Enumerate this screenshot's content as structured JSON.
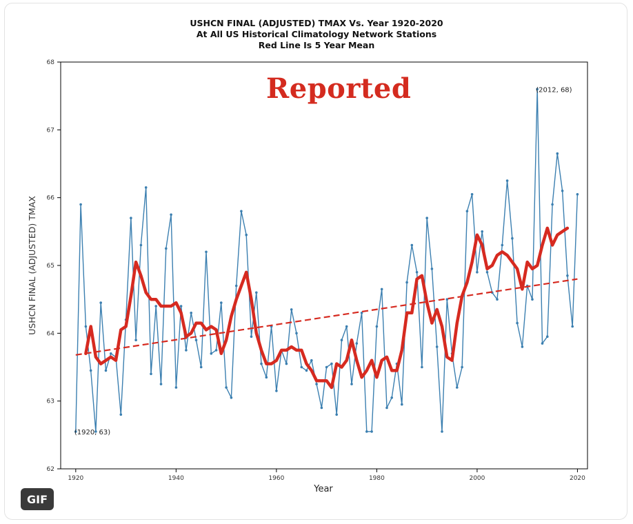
{
  "badge": {
    "label": "GIF"
  },
  "overlay": {
    "stamp_text": "Reported"
  },
  "chart_data": {
    "type": "line",
    "title": "USHCN FINAL (ADJUSTED) TMAX Vs. Year 1920-2020",
    "subtitle_lines": [
      "At All US Historical Climatology Network Stations",
      "Red Line Is 5 Year Mean"
    ],
    "xlabel": "Year",
    "ylabel": "USHCN FINAL (ADJUSTED) TMAX",
    "xlim": [
      1917,
      2022
    ],
    "ylim": [
      62,
      68
    ],
    "x_ticks": [
      1920,
      1940,
      1960,
      1980,
      2000,
      2020
    ],
    "y_ticks": [
      62,
      63,
      64,
      65,
      66,
      67,
      68
    ],
    "grid": false,
    "colors": {
      "annual": "#3b7fb0",
      "mean": "#d62a20",
      "trend": "#d62a20"
    },
    "annotations": [
      {
        "text": "(1920, 63)",
        "x": 1920,
        "y": 62.55
      },
      {
        "text": "(2012, 68)",
        "x": 2012,
        "y": 67.6
      }
    ],
    "series": [
      {
        "style": "annual",
        "x": [
          1920,
          1921,
          1922,
          1923,
          1924,
          1925,
          1926,
          1927,
          1928,
          1929,
          1930,
          1931,
          1932,
          1933,
          1934,
          1935,
          1936,
          1937,
          1938,
          1939,
          1940,
          1941,
          1942,
          1943,
          1944,
          1945,
          1946,
          1947,
          1948,
          1949,
          1950,
          1951,
          1952,
          1953,
          1954,
          1955,
          1956,
          1957,
          1958,
          1959,
          1960,
          1961,
          1962,
          1963,
          1964,
          1965,
          1966,
          1967,
          1968,
          1969,
          1970,
          1971,
          1972,
          1973,
          1974,
          1975,
          1976,
          1977,
          1978,
          1979,
          1980,
          1981,
          1982,
          1983,
          1984,
          1985,
          1986,
          1987,
          1988,
          1989,
          1990,
          1991,
          1992,
          1993,
          1994,
          1995,
          1996,
          1997,
          1998,
          1999,
          2000,
          2001,
          2002,
          2003,
          2004,
          2005,
          2006,
          2007,
          2008,
          2009,
          2010,
          2011,
          2012,
          2013,
          2014,
          2015,
          2016,
          2017,
          2018,
          2019,
          2020
        ],
        "values": [
          62.55,
          65.9,
          64.1,
          63.45,
          62.55,
          64.45,
          63.45,
          63.7,
          63.65,
          62.8,
          64.2,
          65.7,
          63.9,
          65.3,
          66.15,
          63.4,
          64.4,
          63.25,
          65.25,
          65.75,
          63.2,
          64.4,
          63.75,
          64.3,
          63.9,
          63.5,
          65.2,
          63.7,
          63.75,
          64.45,
          63.2,
          63.05,
          64.7,
          65.8,
          65.45,
          63.95,
          64.6,
          63.55,
          63.35,
          64.1,
          63.15,
          63.75,
          63.55,
          64.35,
          64.0,
          63.5,
          63.45,
          63.6,
          63.25,
          62.9,
          63.5,
          63.55,
          62.8,
          63.9,
          64.1,
          63.25,
          63.85,
          64.3,
          62.55,
          62.55,
          64.1,
          64.65,
          62.9,
          63.05,
          63.55,
          62.95,
          64.75,
          65.3,
          64.9,
          63.5,
          65.7,
          64.95,
          63.8,
          62.55,
          64.5,
          63.7,
          63.2,
          63.5,
          65.8,
          66.05,
          64.9,
          65.5,
          64.9,
          64.6,
          64.5,
          65.3,
          66.25,
          65.4,
          64.15,
          63.8,
          64.7,
          64.5,
          67.6,
          63.85,
          63.95,
          65.9,
          66.65,
          66.1,
          64.85,
          64.1,
          66.05
        ]
      },
      {
        "style": "mean",
        "x": [
          1922,
          1923,
          1924,
          1925,
          1926,
          1927,
          1928,
          1929,
          1930,
          1931,
          1932,
          1933,
          1934,
          1935,
          1936,
          1937,
          1938,
          1939,
          1940,
          1941,
          1942,
          1943,
          1944,
          1945,
          1946,
          1947,
          1948,
          1949,
          1950,
          1951,
          1952,
          1953,
          1954,
          1955,
          1956,
          1957,
          1958,
          1959,
          1960,
          1961,
          1962,
          1963,
          1964,
          1965,
          1966,
          1967,
          1968,
          1969,
          1970,
          1971,
          1972,
          1973,
          1974,
          1975,
          1976,
          1977,
          1978,
          1979,
          1980,
          1981,
          1982,
          1983,
          1984,
          1985,
          1986,
          1987,
          1988,
          1989,
          1990,
          1991,
          1992,
          1993,
          1994,
          1995,
          1996,
          1997,
          1998,
          1999,
          2000,
          2001,
          2002,
          2003,
          2004,
          2005,
          2006,
          2007,
          2008,
          2009,
          2010,
          2011,
          2012,
          2013,
          2014,
          2015,
          2016,
          2017,
          2018
        ],
        "values": [
          63.7,
          64.1,
          63.65,
          63.55,
          63.6,
          63.65,
          63.6,
          64.05,
          64.1,
          64.55,
          65.05,
          64.85,
          64.6,
          64.5,
          64.5,
          64.4,
          64.4,
          64.4,
          64.45,
          64.3,
          63.95,
          64.0,
          64.15,
          64.15,
          64.05,
          64.1,
          64.05,
          63.7,
          63.9,
          64.25,
          64.5,
          64.7,
          64.9,
          64.5,
          64.0,
          63.75,
          63.55,
          63.55,
          63.6,
          63.75,
          63.75,
          63.8,
          63.75,
          63.75,
          63.55,
          63.45,
          63.3,
          63.3,
          63.3,
          63.2,
          63.55,
          63.5,
          63.6,
          63.9,
          63.6,
          63.35,
          63.45,
          63.6,
          63.35,
          63.6,
          63.65,
          63.45,
          63.45,
          63.75,
          64.3,
          64.3,
          64.8,
          64.85,
          64.45,
          64.15,
          64.35,
          64.1,
          63.65,
          63.6,
          64.15,
          64.55,
          64.75,
          65.05,
          65.45,
          65.3,
          64.95,
          65.0,
          65.15,
          65.2,
          65.15,
          65.05,
          64.95,
          64.65,
          65.05,
          64.95,
          65.0,
          65.3,
          65.55,
          65.3,
          65.45,
          65.5,
          65.55
        ]
      },
      {
        "style": "trend",
        "x": [
          1920,
          2020
        ],
        "values": [
          63.68,
          64.8
        ]
      }
    ]
  }
}
